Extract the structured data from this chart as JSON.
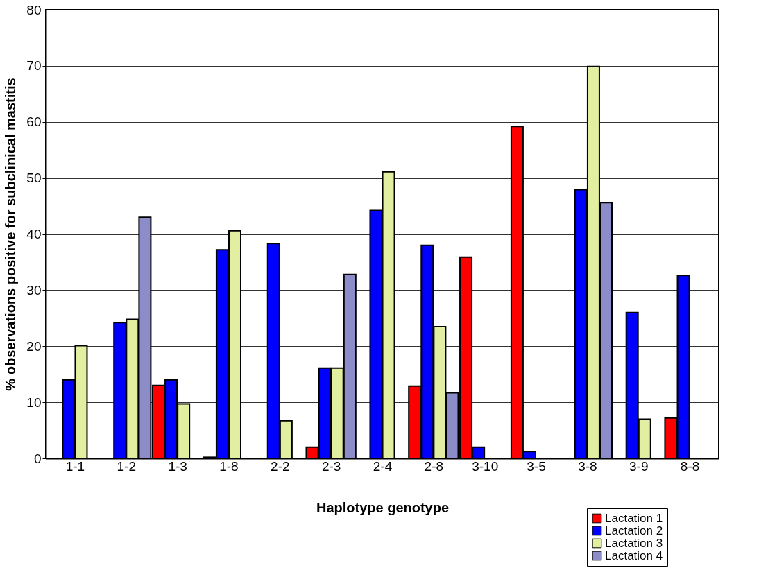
{
  "chart_data": {
    "type": "bar",
    "xlabel": "Haplotype genotype",
    "ylabel": "% observations positive for subclinical mastitis",
    "categories": [
      "1-1",
      "1-2",
      "1-3",
      "1-8",
      "2-2",
      "2-3",
      "2-4",
      "2-8",
      "3-10",
      "3-5",
      "3-8",
      "3-9",
      "8-8"
    ],
    "series": [
      {
        "name": "Lactation 1",
        "color": "#ff0000",
        "values": [
          null,
          null,
          13,
          0.2,
          null,
          2,
          null,
          12.9,
          35.9,
          59.2,
          null,
          null,
          7.2
        ]
      },
      {
        "name": "Lactation 2",
        "color": "#0000ff",
        "values": [
          14,
          24.2,
          14,
          37.2,
          38.3,
          16.1,
          44.2,
          38,
          2,
          1.2,
          47.9,
          26,
          32.6
        ]
      },
      {
        "name": "Lactation 3",
        "color": "#e2eea0",
        "values": [
          20.1,
          24.8,
          9.7,
          40.6,
          6.7,
          16.1,
          51.1,
          23.5,
          null,
          null,
          69.9,
          7,
          null
        ]
      },
      {
        "name": "Lactation 4",
        "color": "#8c8cc8",
        "values": [
          null,
          43,
          null,
          null,
          null,
          32.8,
          null,
          11.7,
          null,
          null,
          45.6,
          null,
          null
        ]
      }
    ],
    "ylim": [
      0,
      80
    ],
    "yticks": [
      0,
      10,
      20,
      30,
      40,
      50,
      60,
      70,
      80
    ],
    "grid": "y",
    "legend": "bottom right"
  }
}
